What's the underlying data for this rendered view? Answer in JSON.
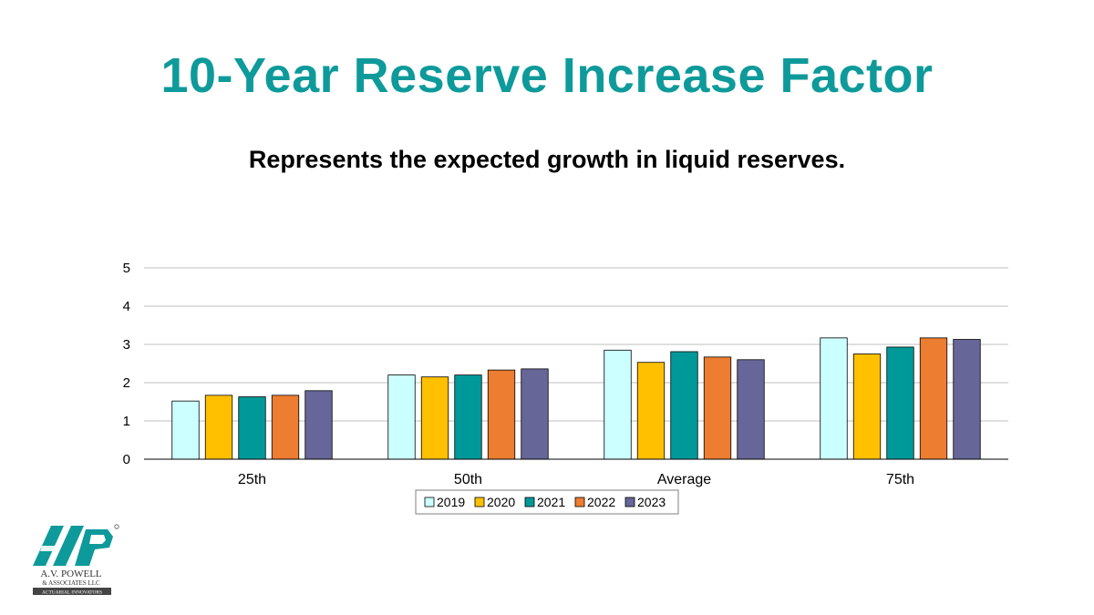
{
  "slide": {
    "title": "10-Year Reserve Increase Factor",
    "subtitle": "Represents the expected growth in liquid reserves."
  },
  "logo": {
    "mark_text": "AVP",
    "name": "A.V. POWELL",
    "sub": "& ASSOCIATES LLC",
    "tagline": "ACTUARIAL INNOVATORS",
    "brand_color": "#0E9A9A"
  },
  "chart_data": {
    "type": "bar",
    "categories": [
      "25th",
      "50th",
      "Average",
      "75th"
    ],
    "series": [
      {
        "name": "2019",
        "color": "#CCFFFF",
        "values": [
          1.52,
          2.2,
          2.85,
          3.17
        ]
      },
      {
        "name": "2020",
        "color": "#FFC000",
        "values": [
          1.67,
          2.15,
          2.53,
          2.75
        ]
      },
      {
        "name": "2021",
        "color": "#009999",
        "values": [
          1.63,
          2.2,
          2.81,
          2.93
        ]
      },
      {
        "name": "2022",
        "color": "#ED7D31",
        "values": [
          1.67,
          2.33,
          2.67,
          3.17
        ]
      },
      {
        "name": "2023",
        "color": "#666699",
        "values": [
          1.79,
          2.36,
          2.6,
          3.13
        ]
      }
    ],
    "ylim": [
      0,
      5
    ],
    "yticks": [
      0,
      1,
      2,
      3,
      4,
      5
    ],
    "grid": true,
    "legend_position": "bottom",
    "xlabel": "",
    "ylabel": ""
  }
}
